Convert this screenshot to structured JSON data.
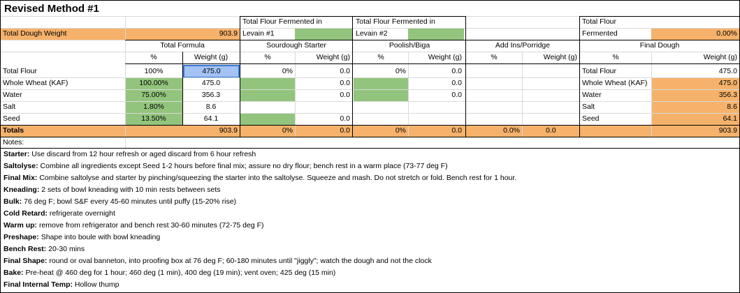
{
  "title": "Revised Method #1",
  "header": {
    "total_dough_weight_label": "Total Dough Weight",
    "total_dough_weight_value": "903.9",
    "levain1_label_top": "Total Flour Fermented in",
    "levain1_label_bottom": "Levain #1",
    "levain2_label_top": "Total Flour Fermented in",
    "levain2_label_bottom": "Levain #2",
    "total_flour_fermented_top": "Total Flour",
    "total_flour_fermented_bottom": "Fermented",
    "total_flour_fermented_value": "0.00%"
  },
  "sections": {
    "total_formula": "Total Formula",
    "sourdough_starter": "Sourdough Starter",
    "poolish_biga": "Poolish/Biga",
    "add_ins": "Add Ins/Porridge",
    "final_dough": "Final Dough"
  },
  "col_headers": {
    "pct": "%",
    "weight": "Weight (g)"
  },
  "rows": [
    {
      "label": "Total Flour",
      "tf_pct": "100%",
      "tf_w": "475.0",
      "ss_pct": "0%",
      "ss_w": "0.0",
      "pb_pct": "0%",
      "pb_w": "0.0",
      "ai_pct": "",
      "ai_w": "",
      "fd_label": "Total Flour",
      "fd_w": "475.0"
    },
    {
      "label": "Whole Wheat (KAF)",
      "tf_pct": "100.00%",
      "tf_w": "475.0",
      "ss_pct": "",
      "ss_w": "0.0",
      "pb_pct": "",
      "pb_w": "0.0",
      "ai_pct": "",
      "ai_w": "",
      "fd_label": "Whole Wheat (KAF)",
      "fd_w": "475.0"
    },
    {
      "label": "Water",
      "tf_pct": "75.00%",
      "tf_w": "356.3",
      "ss_pct": "",
      "ss_w": "0.0",
      "pb_pct": "",
      "pb_w": "0.0",
      "ai_pct": "",
      "ai_w": "",
      "fd_label": "Water",
      "fd_w": "356.3"
    },
    {
      "label": "Salt",
      "tf_pct": "1.80%",
      "tf_w": "8.6",
      "ss_pct": "",
      "ss_w": "",
      "pb_pct": "",
      "pb_w": "",
      "ai_pct": "",
      "ai_w": "",
      "fd_label": "Salt",
      "fd_w": "8.6"
    },
    {
      "label": "Seed",
      "tf_pct": "13.50%",
      "tf_w": "64.1",
      "ss_pct": "",
      "ss_w": "0.0",
      "pb_pct": "",
      "pb_w": "",
      "ai_pct": "",
      "ai_w": "",
      "fd_label": "Seed",
      "fd_w": "64.1"
    }
  ],
  "totals": {
    "label": "Totals",
    "tf_w": "903.9",
    "ss_pct": "0%",
    "ss_w": "0.0",
    "pb_pct": "0%",
    "pb_w": "0.0",
    "ai_pct": "0.0%",
    "ai_w": "0.0",
    "fd_w": "903.9"
  },
  "notes_label": "Notes:",
  "notes": [
    {
      "key": "Starter:",
      "text": " Use discard from 12 hour refresh or aged discard from 6 hour refresh"
    },
    {
      "key": "Saltolyse:",
      "text": " Combine all ingredients except Seed 1-2 hours before final mix; assure no dry flour; bench rest in a warm place (73-77 deg F)"
    },
    {
      "key": "Final Mix:",
      "text": " Combine saltolyse and starter by pinching/squeezing the starter into the saltolyse.  Squeeze and mash.  Do not stretch or fold.  Bench rest for 1 hour."
    },
    {
      "key": "Kneading:",
      "text": " 2 sets of bowl kneading with 10 min rests between sets"
    },
    {
      "key": "Bulk:",
      "text": "  76 deg F; bowl S&F every 45-60 minutes until puffy (15-20% rise)"
    },
    {
      "key": "Cold Retard:",
      "text": " refrigerate overnight"
    },
    {
      "key": "Warm up:",
      "text": " remove from refrigerator and bench rest 30-60 minutes (72-75 deg F)"
    },
    {
      "key": "Preshape:",
      "text": " Shape into boule with bowl kneading"
    },
    {
      "key": "Bench Rest:",
      "text": " 20-30 mins"
    },
    {
      "key": "Final Shape:",
      "text": " round or oval banneton, into proofing box at 76 deg F; 60-180 minutes until \"jiggly\"; watch the dough and not the clock"
    },
    {
      "key": "Bake:",
      "text": " Pre-heat @ 460 deg for 1 hour; 460 deg (1 min), 400 deg (19 min); vent oven; 425 deg (15 min)"
    },
    {
      "key": "Final Internal Temp:",
      "text": " Hollow thump"
    }
  ]
}
